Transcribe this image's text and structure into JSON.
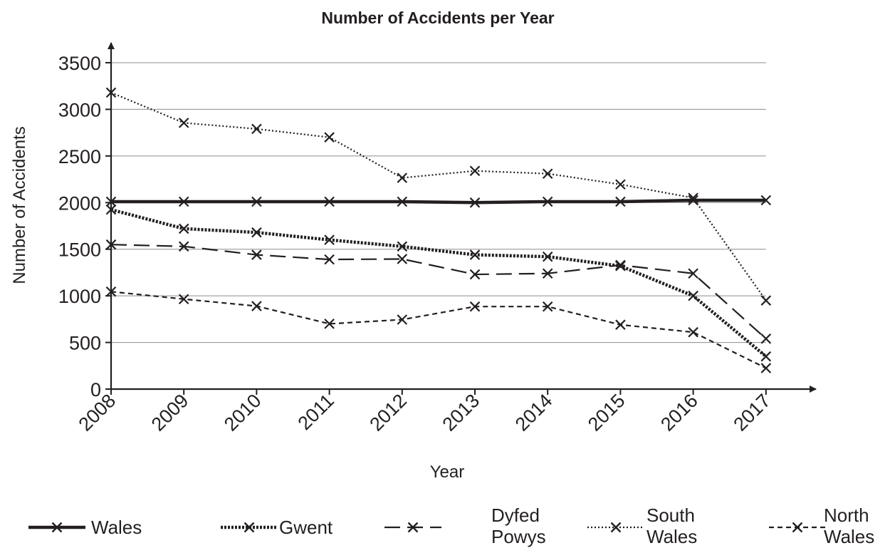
{
  "chart_data": {
    "type": "line",
    "title": "Number of Accidents per Year",
    "xlabel": "Year",
    "ylabel": "Number of Accidents",
    "categories": [
      "2008",
      "2009",
      "2010",
      "2011",
      "2012",
      "2013",
      "2014",
      "2015",
      "2016",
      "2017"
    ],
    "yticks": [
      0,
      500,
      1000,
      1500,
      2000,
      2500,
      3000,
      3500
    ],
    "ylim": [
      0,
      3500
    ],
    "grid": true,
    "legend_position": "bottom",
    "series": [
      {
        "name": "Wales",
        "style": "thick-solid",
        "values": [
          2010,
          2010,
          2010,
          2010,
          2010,
          2000,
          2010,
          2010,
          2025,
          2025
        ]
      },
      {
        "name": "Gwent",
        "style": "thick-dotted",
        "values": [
          1925,
          1720,
          1680,
          1600,
          1530,
          1440,
          1420,
          1320,
          1000,
          350
        ]
      },
      {
        "name": "Dyfed Powys",
        "style": "long-dash",
        "values": [
          1550,
          1530,
          1440,
          1390,
          1395,
          1230,
          1240,
          1330,
          1240,
          540
        ]
      },
      {
        "name": "South Wales",
        "style": "dotted",
        "values": [
          3180,
          2855,
          2790,
          2700,
          2265,
          2340,
          2310,
          2195,
          2050,
          950
        ]
      },
      {
        "name": "North Wales",
        "style": "short-dash",
        "values": [
          1045,
          965,
          890,
          700,
          745,
          885,
          885,
          690,
          610,
          225
        ]
      }
    ],
    "legend_lines": [
      [
        "Wales"
      ],
      [
        "Gwent"
      ],
      [
        "Dyfed",
        "Powys"
      ],
      [
        "South",
        "Wales"
      ],
      [
        "North",
        "Wales"
      ]
    ]
  }
}
